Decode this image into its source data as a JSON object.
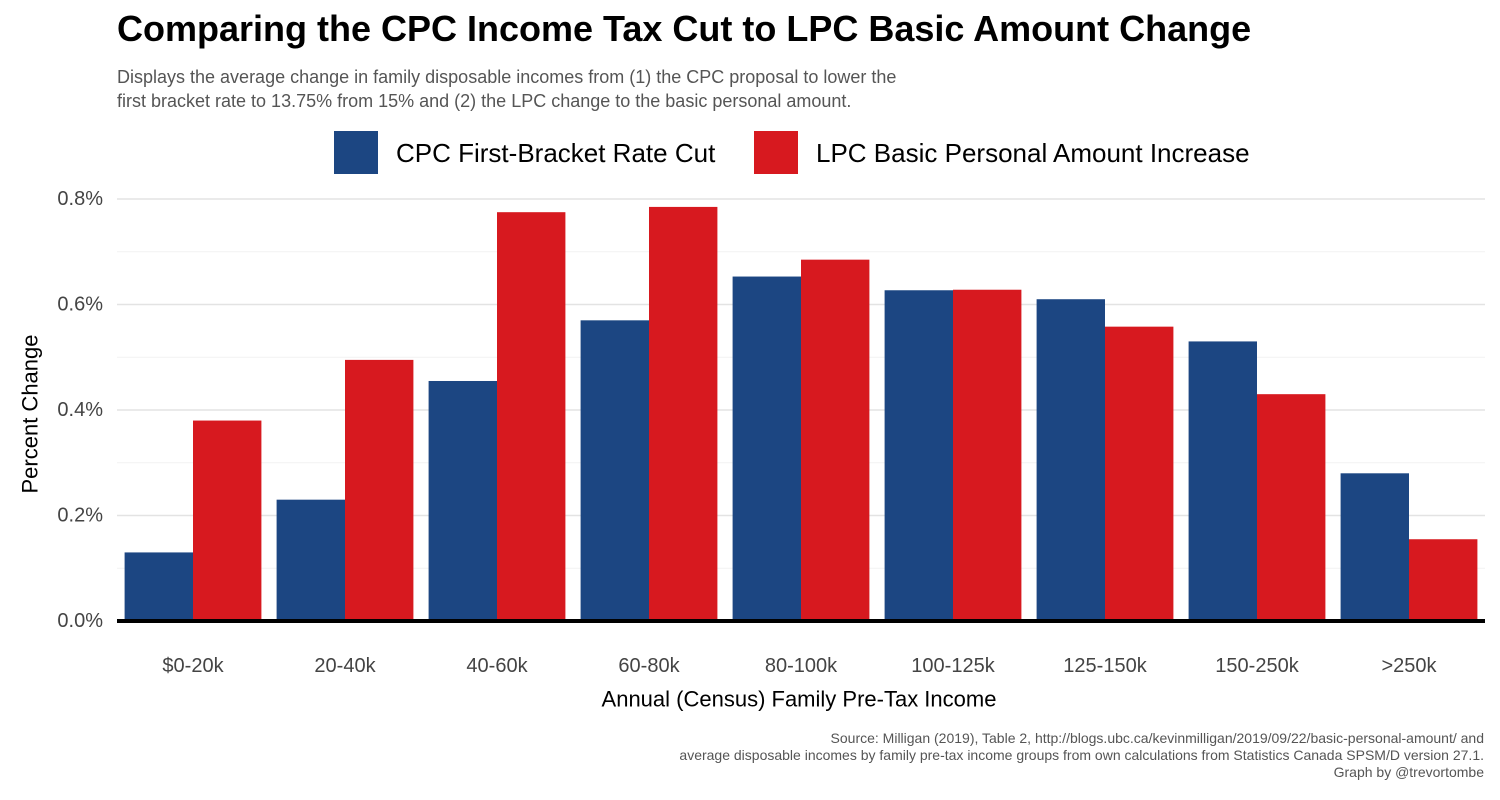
{
  "chart_data": {
    "type": "bar",
    "title": "Comparing the CPC Income Tax Cut to LPC Basic Amount Change",
    "subtitle_lines": [
      "Displays the average change in family disposable incomes from (1) the CPC proposal to lower the",
      "first bracket rate to 13.75% from 15% and (2) the LPC change to the basic personal amount."
    ],
    "xlabel": "Annual (Census) Family Pre-Tax Income",
    "ylabel": "Percent Change",
    "categories": [
      "$0-20k",
      "20-40k",
      "40-60k",
      "60-80k",
      "80-100k",
      "100-125k",
      "125-150k",
      "150-250k",
      ">250k"
    ],
    "series": [
      {
        "name": "CPC First-Bracket Rate Cut",
        "color": "#1c4682",
        "values": [
          0.13,
          0.23,
          0.455,
          0.57,
          0.653,
          0.627,
          0.61,
          0.53,
          0.28
        ]
      },
      {
        "name": "LPC Basic Personal Amount Increase",
        "color": "#d7191f",
        "values": [
          0.38,
          0.495,
          0.775,
          0.785,
          0.685,
          0.628,
          0.558,
          0.43,
          0.155
        ]
      }
    ],
    "ylim": [
      0,
      0.8
    ],
    "yticks": [
      0,
      0.2,
      0.4,
      0.6,
      0.8
    ],
    "ytick_labels": [
      "0.0%",
      "0.2%",
      "0.4%",
      "0.6%",
      "0.8%"
    ],
    "grid": true,
    "legend_position": "top",
    "caption_lines": [
      "Source: Milligan (2019), Table 2, http://blogs.ubc.ca/kevinmilligan/2019/09/22/basic-personal-amount/ and",
      "average disposable incomes by family pre-tax income groups from own calculations from Statistics Canada SPSM/D version 27.1.",
      "Graph by @trevortombe"
    ]
  }
}
